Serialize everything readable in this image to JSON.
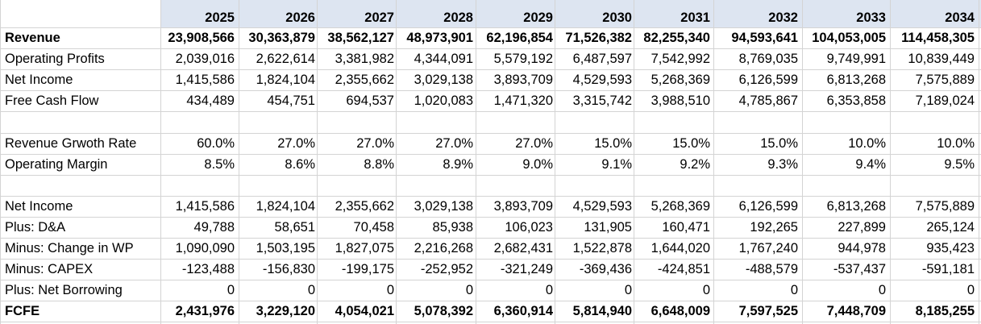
{
  "header": {
    "years": [
      "2025",
      "2026",
      "2027",
      "2028",
      "2029",
      "2030",
      "2031",
      "2032",
      "2033",
      "2034"
    ]
  },
  "rows": [
    {
      "label": "Revenue",
      "bold": true,
      "values": [
        "23,908,566",
        "30,363,879",
        "38,562,127",
        "48,973,901",
        "62,196,854",
        "71,526,382",
        "82,255,340",
        "94,593,641",
        "104,053,005",
        "114,458,305"
      ]
    },
    {
      "label": "Operating Profits",
      "bold": false,
      "values": [
        "2,039,016",
        "2,622,614",
        "3,381,982",
        "4,344,091",
        "5,579,192",
        "6,487,597",
        "7,542,992",
        "8,769,035",
        "9,749,991",
        "10,839,449"
      ]
    },
    {
      "label": "Net Income",
      "bold": false,
      "values": [
        "1,415,586",
        "1,824,104",
        "2,355,662",
        "3,029,138",
        "3,893,709",
        "4,529,593",
        "5,268,369",
        "6,126,599",
        "6,813,268",
        "7,575,889"
      ]
    },
    {
      "label": "Free Cash Flow",
      "bold": false,
      "values": [
        "434,489",
        "454,751",
        "694,537",
        "1,020,083",
        "1,471,320",
        "3,315,742",
        "3,988,510",
        "4,785,867",
        "6,353,858",
        "7,189,024"
      ]
    },
    {
      "label": "",
      "bold": false,
      "values": [
        "",
        "",
        "",
        "",
        "",
        "",
        "",
        "",
        "",
        ""
      ]
    },
    {
      "label": "Revenue Grwoth Rate",
      "bold": false,
      "values": [
        "60.0%",
        "27.0%",
        "27.0%",
        "27.0%",
        "27.0%",
        "15.0%",
        "15.0%",
        "15.0%",
        "10.0%",
        "10.0%"
      ]
    },
    {
      "label": "Operating Margin",
      "bold": false,
      "values": [
        "8.5%",
        "8.6%",
        "8.8%",
        "8.9%",
        "9.0%",
        "9.1%",
        "9.2%",
        "9.3%",
        "9.4%",
        "9.5%"
      ]
    },
    {
      "label": "",
      "bold": false,
      "values": [
        "",
        "",
        "",
        "",
        "",
        "",
        "",
        "",
        "",
        ""
      ]
    },
    {
      "label": "Net Income",
      "bold": false,
      "values": [
        "1,415,586",
        "1,824,104",
        "2,355,662",
        "3,029,138",
        "3,893,709",
        "4,529,593",
        "5,268,369",
        "6,126,599",
        "6,813,268",
        "7,575,889"
      ]
    },
    {
      "label": "Plus: D&A",
      "bold": false,
      "values": [
        "49,788",
        "58,651",
        "70,458",
        "85,938",
        "106,023",
        "131,905",
        "160,471",
        "192,265",
        "227,899",
        "265,124"
      ]
    },
    {
      "label": "Minus: Change in WP",
      "bold": false,
      "values": [
        "1,090,090",
        "1,503,195",
        "1,827,075",
        "2,216,268",
        "2,682,431",
        "1,522,878",
        "1,644,020",
        "1,767,240",
        "944,978",
        "935,423"
      ]
    },
    {
      "label": "Minus: CAPEX",
      "bold": false,
      "values": [
        "-123,488",
        "-156,830",
        "-199,175",
        "-252,952",
        "-321,249",
        "-369,436",
        "-424,851",
        "-488,579",
        "-537,437",
        "-591,181"
      ]
    },
    {
      "label": "Plus: Net Borrowing",
      "bold": false,
      "values": [
        "0",
        "0",
        "0",
        "0",
        "0",
        "0",
        "0",
        "0",
        "0",
        "0"
      ]
    },
    {
      "label": "FCFE",
      "bold": true,
      "values": [
        "2,431,976",
        "3,229,120",
        "4,054,021",
        "5,078,392",
        "6,360,914",
        "5,814,940",
        "6,648,009",
        "7,597,525",
        "7,448,709",
        "8,185,255"
      ]
    }
  ]
}
